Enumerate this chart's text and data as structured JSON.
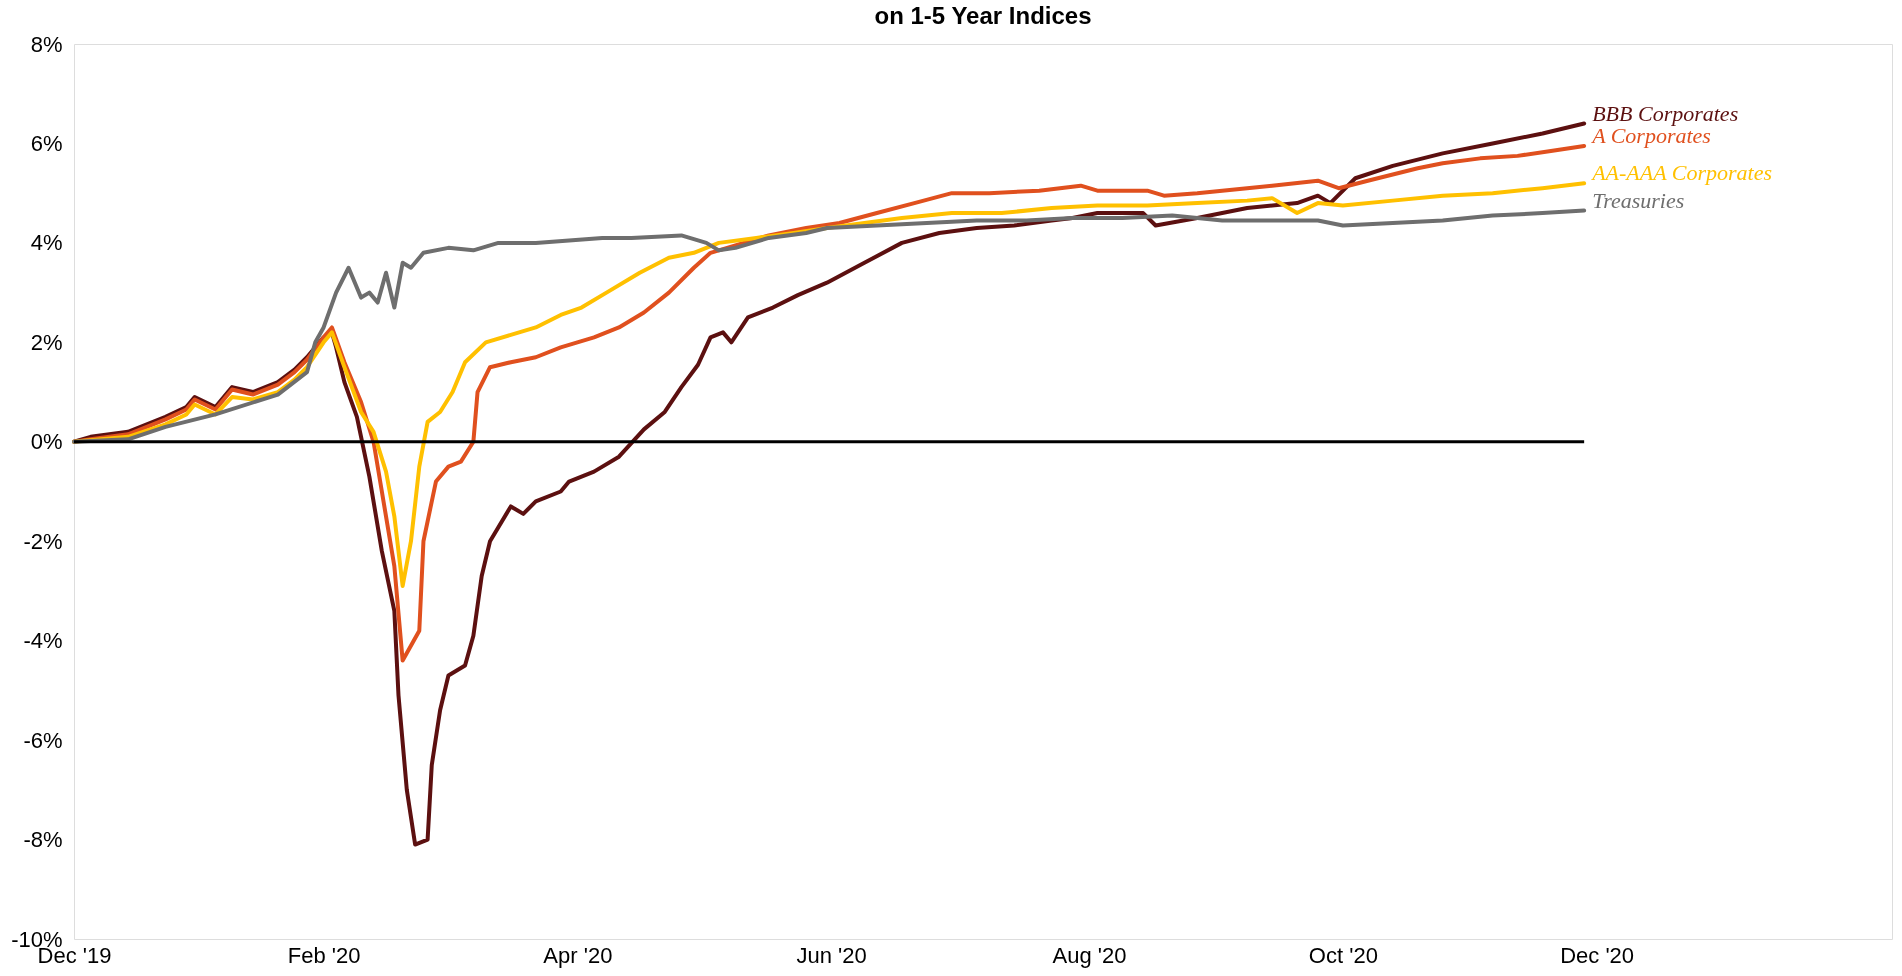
{
  "chart_data": {
    "type": "line",
    "title": "on 1-5 Year Indices",
    "xlim": [
      "2019-12-31",
      "2021-03-12"
    ],
    "xticks": [
      {
        "value": "2019-12-31",
        "label": "Dec '19"
      },
      {
        "value": "2020-02-29",
        "label": "Feb '20"
      },
      {
        "value": "2020-04-30",
        "label": "Apr '20"
      },
      {
        "value": "2020-06-30",
        "label": "Jun '20"
      },
      {
        "value": "2020-08-31",
        "label": "Aug '20"
      },
      {
        "value": "2020-10-31",
        "label": "Oct '20"
      },
      {
        "value": "2020-12-31",
        "label": "Dec '20"
      }
    ],
    "ylim": [
      -10,
      8
    ],
    "yticks": [
      {
        "value": -10,
        "label": "-10%"
      },
      {
        "value": -8,
        "label": "-8%"
      },
      {
        "value": -6,
        "label": "-6%"
      },
      {
        "value": -4,
        "label": "-4%"
      },
      {
        "value": -2,
        "label": "-2%"
      },
      {
        "value": 0,
        "label": "0%"
      },
      {
        "value": 2,
        "label": "2%"
      },
      {
        "value": 4,
        "label": "4%"
      },
      {
        "value": 6,
        "label": "6%"
      },
      {
        "value": 8,
        "label": "8%"
      }
    ],
    "grid": false,
    "legend": false,
    "marker": "none",
    "line_style": "solid",
    "ref_lines": [
      {
        "axis": "y",
        "value": 0,
        "color": "#000000"
      }
    ],
    "series": [
      {
        "name": "BBB Corporates",
        "color": "#5c1010",
        "x": [
          "2019-12-31",
          "2020-01-04",
          "2020-01-13",
          "2020-01-22",
          "2020-01-27",
          "2020-01-29",
          "2020-02-03",
          "2020-02-07",
          "2020-02-12",
          "2020-02-18",
          "2020-02-22",
          "2020-02-25",
          "2020-02-29",
          "2020-03-02",
          "2020-03-03",
          "2020-03-05",
          "2020-03-08",
          "2020-03-11",
          "2020-03-14",
          "2020-03-17",
          "2020-03-18",
          "2020-03-20",
          "2020-03-22",
          "2020-03-25",
          "2020-03-26",
          "2020-03-28",
          "2020-03-30",
          "2020-04-03",
          "2020-04-05",
          "2020-04-07",
          "2020-04-09",
          "2020-04-14",
          "2020-04-17",
          "2020-04-20",
          "2020-04-26",
          "2020-04-28",
          "2020-05-04",
          "2020-05-10",
          "2020-05-16",
          "2020-05-21",
          "2020-05-25",
          "2020-05-29",
          "2020-06-01",
          "2020-06-04",
          "2020-06-06",
          "2020-06-10",
          "2020-06-16",
          "2020-06-22",
          "2020-06-29",
          "2020-07-08",
          "2020-07-17",
          "2020-07-26",
          "2020-08-04",
          "2020-08-13",
          "2020-08-22",
          "2020-08-27",
          "2020-09-02",
          "2020-09-13",
          "2020-09-16",
          "2020-09-26",
          "2020-10-08",
          "2020-10-20",
          "2020-10-25",
          "2020-10-28",
          "2020-11-03",
          "2020-11-12",
          "2020-11-24",
          "2020-12-06",
          "2020-12-18",
          "2020-12-28"
        ],
        "values": [
          0,
          0.1,
          0.2,
          0.5,
          0.7,
          0.9,
          0.7,
          1.1,
          1.0,
          1.2,
          1.45,
          1.7,
          2.1,
          2.2,
          1.9,
          1.2,
          0.5,
          -0.7,
          -2.2,
          -3.4,
          -5.1,
          -7.0,
          -8.1,
          -8.0,
          -6.5,
          -5.4,
          -4.7,
          -4.5,
          -3.9,
          -2.7,
          -2.0,
          -1.3,
          -1.45,
          -1.2,
          -1.0,
          -0.8,
          -0.6,
          -0.3,
          0.25,
          0.6,
          1.1,
          1.55,
          2.1,
          2.2,
          2.0,
          2.5,
          2.7,
          2.95,
          3.2,
          3.6,
          4.0,
          4.2,
          4.3,
          4.35,
          4.45,
          4.5,
          4.6,
          4.6,
          4.35,
          4.5,
          4.7,
          4.8,
          4.95,
          4.8,
          5.3,
          5.55,
          5.8,
          6.0,
          6.2,
          6.4
        ]
      },
      {
        "name": "A Corporates",
        "color": "#e0501e",
        "x": [
          "2019-12-31",
          "2020-01-04",
          "2020-01-13",
          "2020-01-22",
          "2020-01-27",
          "2020-01-29",
          "2020-02-03",
          "2020-02-07",
          "2020-02-12",
          "2020-02-18",
          "2020-02-22",
          "2020-02-25",
          "2020-02-29",
          "2020-03-02",
          "2020-03-05",
          "2020-03-09",
          "2020-03-12",
          "2020-03-15",
          "2020-03-17",
          "2020-03-19",
          "2020-03-23",
          "2020-03-24",
          "2020-03-27",
          "2020-03-30",
          "2020-04-02",
          "2020-04-05",
          "2020-04-06",
          "2020-04-09",
          "2020-04-14",
          "2020-04-20",
          "2020-04-26",
          "2020-04-30",
          "2020-05-04",
          "2020-05-10",
          "2020-05-16",
          "2020-05-22",
          "2020-05-28",
          "2020-06-01",
          "2020-06-07",
          "2020-06-15",
          "2020-06-24",
          "2020-07-02",
          "2020-07-11",
          "2020-07-20",
          "2020-07-29",
          "2020-08-07",
          "2020-08-19",
          "2020-08-29",
          "2020-09-02",
          "2020-09-14",
          "2020-09-18",
          "2020-09-26",
          "2020-10-08",
          "2020-10-14",
          "2020-10-25",
          "2020-10-30",
          "2020-11-06",
          "2020-11-18",
          "2020-11-24",
          "2020-12-03",
          "2020-12-12",
          "2020-12-20",
          "2020-12-28"
        ],
        "values": [
          0,
          0.05,
          0.15,
          0.45,
          0.65,
          0.85,
          0.65,
          1.05,
          0.95,
          1.15,
          1.4,
          1.65,
          2.1,
          2.3,
          1.6,
          0.8,
          0,
          -1.5,
          -2.5,
          -4.4,
          -3.8,
          -2.0,
          -0.8,
          -0.5,
          -0.4,
          0.0,
          1.0,
          1.5,
          1.6,
          1.7,
          1.9,
          2.0,
          2.1,
          2.3,
          2.6,
          3.0,
          3.5,
          3.8,
          3.95,
          4.15,
          4.3,
          4.4,
          4.6,
          4.8,
          5.0,
          5.0,
          5.05,
          5.15,
          5.05,
          5.05,
          4.95,
          5.0,
          5.1,
          5.15,
          5.25,
          5.1,
          5.25,
          5.5,
          5.6,
          5.7,
          5.75,
          5.85,
          5.95
        ]
      },
      {
        "name": "AA-AAA Corporates",
        "color": "#ffc000",
        "x": [
          "2019-12-31",
          "2020-01-13",
          "2020-01-22",
          "2020-01-27",
          "2020-01-29",
          "2020-02-03",
          "2020-02-07",
          "2020-02-12",
          "2020-02-18",
          "2020-02-22",
          "2020-02-25",
          "2020-02-29",
          "2020-03-02",
          "2020-03-05",
          "2020-03-09",
          "2020-03-12",
          "2020-03-15",
          "2020-03-17",
          "2020-03-19",
          "2020-03-21",
          "2020-03-23",
          "2020-03-25",
          "2020-03-28",
          "2020-03-31",
          "2020-04-03",
          "2020-04-08",
          "2020-04-14",
          "2020-04-20",
          "2020-04-26",
          "2020-05-01",
          "2020-05-07",
          "2020-05-15",
          "2020-05-22",
          "2020-05-28",
          "2020-06-03",
          "2020-06-12",
          "2020-06-21",
          "2020-06-29",
          "2020-07-08",
          "2020-07-17",
          "2020-07-29",
          "2020-08-10",
          "2020-08-22",
          "2020-09-02",
          "2020-09-14",
          "2020-09-26",
          "2020-10-08",
          "2020-10-14",
          "2020-10-20",
          "2020-10-25",
          "2020-10-31",
          "2020-11-12",
          "2020-11-24",
          "2020-12-06",
          "2020-12-18",
          "2020-12-28"
        ],
        "values": [
          0,
          0.1,
          0.35,
          0.55,
          0.75,
          0.55,
          0.9,
          0.85,
          1.0,
          1.25,
          1.5,
          2.0,
          2.2,
          1.5,
          0.6,
          0.2,
          -0.6,
          -1.5,
          -2.9,
          -2.0,
          -0.5,
          0.4,
          0.6,
          1.0,
          1.6,
          2.0,
          2.15,
          2.3,
          2.55,
          2.7,
          3.0,
          3.4,
          3.7,
          3.8,
          4.0,
          4.1,
          4.2,
          4.3,
          4.4,
          4.5,
          4.6,
          4.6,
          4.7,
          4.75,
          4.75,
          4.8,
          4.85,
          4.9,
          4.6,
          4.8,
          4.75,
          4.85,
          4.95,
          5.0,
          5.1,
          5.2
        ]
      },
      {
        "name": "Treasuries",
        "color": "#6e6e6e",
        "x": [
          "2019-12-31",
          "2020-01-13",
          "2020-01-22",
          "2020-02-03",
          "2020-02-18",
          "2020-02-25",
          "2020-02-27",
          "2020-02-29",
          "2020-03-03",
          "2020-03-06",
          "2020-03-09",
          "2020-03-11",
          "2020-03-13",
          "2020-03-15",
          "2020-03-17",
          "2020-03-19",
          "2020-03-21",
          "2020-03-24",
          "2020-03-30",
          "2020-04-05",
          "2020-04-11",
          "2020-04-20",
          "2020-04-28",
          "2020-05-06",
          "2020-05-13",
          "2020-05-25",
          "2020-05-31",
          "2020-06-03",
          "2020-06-07",
          "2020-06-15",
          "2020-06-24",
          "2020-06-29",
          "2020-07-11",
          "2020-07-23",
          "2020-08-04",
          "2020-08-16",
          "2020-08-27",
          "2020-09-08",
          "2020-09-20",
          "2020-10-02",
          "2020-10-14",
          "2020-10-25",
          "2020-10-31",
          "2020-11-12",
          "2020-11-24",
          "2020-12-06",
          "2020-12-18",
          "2020-12-28"
        ],
        "values": [
          0,
          0.05,
          0.3,
          0.55,
          0.95,
          1.4,
          2.0,
          2.3,
          3.0,
          3.5,
          2.9,
          3.0,
          2.8,
          3.4,
          2.7,
          3.6,
          3.5,
          3.8,
          3.9,
          3.85,
          4.0,
          4.0,
          4.05,
          4.1,
          4.1,
          4.15,
          4.0,
          3.85,
          3.9,
          4.1,
          4.2,
          4.3,
          4.35,
          4.4,
          4.45,
          4.45,
          4.5,
          4.5,
          4.55,
          4.45,
          4.45,
          4.45,
          4.35,
          4.4,
          4.45,
          4.55,
          4.6,
          4.65
        ]
      }
    ]
  }
}
